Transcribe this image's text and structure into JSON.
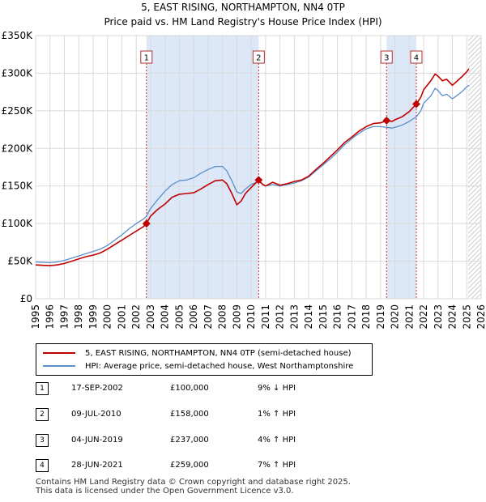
{
  "header": {
    "title_line1": "5, EAST RISING, NORTHAMPTON, NN4 0TP",
    "title_line2": "Price paid vs. HM Land Registry's House Price Index (HPI)"
  },
  "colors": {
    "property_line": "#c00000",
    "hpi_line": "#5b8fc9",
    "shade": "#dce8f8",
    "grid": "#d9d9d9",
    "marker_line": "#cc3333"
  },
  "chart_data": {
    "type": "line",
    "title": "Price paid vs. HM Land Registry's House Price Index (HPI)",
    "xlabel": "",
    "ylabel": "",
    "xlim": [
      1995,
      2026
    ],
    "ylim": [
      0,
      350000
    ],
    "x_ticks": [
      1995,
      1996,
      1997,
      1998,
      1999,
      2000,
      2001,
      2002,
      2003,
      2004,
      2005,
      2006,
      2007,
      2008,
      2009,
      2010,
      2011,
      2012,
      2013,
      2014,
      2015,
      2016,
      2017,
      2018,
      2019,
      2020,
      2021,
      2022,
      2023,
      2024,
      2025,
      2026
    ],
    "y_ticks": [
      {
        "value": 0,
        "label": "£0"
      },
      {
        "value": 50000,
        "label": "£50K"
      },
      {
        "value": 100000,
        "label": "£100K"
      },
      {
        "value": 150000,
        "label": "£150K"
      },
      {
        "value": 200000,
        "label": "£200K"
      },
      {
        "value": 250000,
        "label": "£250K"
      },
      {
        "value": 300000,
        "label": "£300K"
      },
      {
        "value": 350000,
        "label": "£350K"
      }
    ],
    "shaded_ranges": [
      [
        2002.71,
        2010.52
      ],
      [
        2019.42,
        2021.49
      ]
    ],
    "future_hatch_from": 2025.1,
    "series": [
      {
        "name": "5, EAST RISING, NORTHAMPTON, NN4 0TP (semi-detached house)",
        "color": "#c00000",
        "points": [
          [
            1995.0,
            45000
          ],
          [
            1995.5,
            44500
          ],
          [
            1996.0,
            44000
          ],
          [
            1996.5,
            45000
          ],
          [
            1997.0,
            47000
          ],
          [
            1997.5,
            50000
          ],
          [
            1998.0,
            53000
          ],
          [
            1998.5,
            56000
          ],
          [
            1999.0,
            58000
          ],
          [
            1999.5,
            61000
          ],
          [
            2000.0,
            66000
          ],
          [
            2000.5,
            72000
          ],
          [
            2001.0,
            78000
          ],
          [
            2001.5,
            84000
          ],
          [
            2002.0,
            90000
          ],
          [
            2002.5,
            96000
          ],
          [
            2002.71,
            100000
          ],
          [
            2003.0,
            110000
          ],
          [
            2003.5,
            119000
          ],
          [
            2004.0,
            126000
          ],
          [
            2004.5,
            135000
          ],
          [
            2005.0,
            139000
          ],
          [
            2005.5,
            140000
          ],
          [
            2006.0,
            141000
          ],
          [
            2006.5,
            146000
          ],
          [
            2007.0,
            152000
          ],
          [
            2007.5,
            157000
          ],
          [
            2008.0,
            158000
          ],
          [
            2008.3,
            153000
          ],
          [
            2008.7,
            138000
          ],
          [
            2009.0,
            125000
          ],
          [
            2009.3,
            130000
          ],
          [
            2009.6,
            140000
          ],
          [
            2010.0,
            148000
          ],
          [
            2010.52,
            158000
          ],
          [
            2010.8,
            152000
          ],
          [
            2011.0,
            150000
          ],
          [
            2011.5,
            155000
          ],
          [
            2012.0,
            151000
          ],
          [
            2012.5,
            153000
          ],
          [
            2013.0,
            156000
          ],
          [
            2013.5,
            158000
          ],
          [
            2014.0,
            163000
          ],
          [
            2014.5,
            172000
          ],
          [
            2015.0,
            180000
          ],
          [
            2015.5,
            189000
          ],
          [
            2016.0,
            198000
          ],
          [
            2016.5,
            208000
          ],
          [
            2017.0,
            215000
          ],
          [
            2017.5,
            223000
          ],
          [
            2018.0,
            229000
          ],
          [
            2018.5,
            233000
          ],
          [
            2019.0,
            234000
          ],
          [
            2019.42,
            237000
          ],
          [
            2019.8,
            236000
          ],
          [
            2020.0,
            238000
          ],
          [
            2020.5,
            242000
          ],
          [
            2021.0,
            249000
          ],
          [
            2021.49,
            259000
          ],
          [
            2021.8,
            268000
          ],
          [
            2022.0,
            278000
          ],
          [
            2022.5,
            290000
          ],
          [
            2022.8,
            299000
          ],
          [
            2023.0,
            296000
          ],
          [
            2023.3,
            290000
          ],
          [
            2023.6,
            292000
          ],
          [
            2024.0,
            284000
          ],
          [
            2024.3,
            289000
          ],
          [
            2024.7,
            296000
          ],
          [
            2025.0,
            302000
          ],
          [
            2025.15,
            306000
          ]
        ]
      },
      {
        "name": "HPI: Average price, semi-detached house, West Northamptonshire",
        "color": "#5b8fc9",
        "points": [
          [
            1995.0,
            49000
          ],
          [
            1995.5,
            48500
          ],
          [
            1996.0,
            48000
          ],
          [
            1996.5,
            49000
          ],
          [
            1997.0,
            51000
          ],
          [
            1997.5,
            54000
          ],
          [
            1998.0,
            57000
          ],
          [
            1998.5,
            60000
          ],
          [
            1999.0,
            63000
          ],
          [
            1999.5,
            66000
          ],
          [
            2000.0,
            71000
          ],
          [
            2000.5,
            78000
          ],
          [
            2001.0,
            85000
          ],
          [
            2001.5,
            93000
          ],
          [
            2002.0,
            100000
          ],
          [
            2002.5,
            106000
          ],
          [
            2002.71,
            110000
          ],
          [
            2003.0,
            120000
          ],
          [
            2003.5,
            132000
          ],
          [
            2004.0,
            143000
          ],
          [
            2004.5,
            152000
          ],
          [
            2005.0,
            157000
          ],
          [
            2005.5,
            158000
          ],
          [
            2006.0,
            161000
          ],
          [
            2006.5,
            167000
          ],
          [
            2007.0,
            172000
          ],
          [
            2007.5,
            176000
          ],
          [
            2008.0,
            176000
          ],
          [
            2008.3,
            170000
          ],
          [
            2008.7,
            155000
          ],
          [
            2009.0,
            142000
          ],
          [
            2009.3,
            140000
          ],
          [
            2009.6,
            146000
          ],
          [
            2010.0,
            152000
          ],
          [
            2010.52,
            156000
          ],
          [
            2011.0,
            150000
          ],
          [
            2011.5,
            152000
          ],
          [
            2012.0,
            150000
          ],
          [
            2012.5,
            152000
          ],
          [
            2013.0,
            154000
          ],
          [
            2013.5,
            157000
          ],
          [
            2014.0,
            162000
          ],
          [
            2014.5,
            170000
          ],
          [
            2015.0,
            178000
          ],
          [
            2015.5,
            186000
          ],
          [
            2016.0,
            195000
          ],
          [
            2016.5,
            205000
          ],
          [
            2017.0,
            213000
          ],
          [
            2017.5,
            220000
          ],
          [
            2018.0,
            226000
          ],
          [
            2018.5,
            229000
          ],
          [
            2019.0,
            229000
          ],
          [
            2019.42,
            228000
          ],
          [
            2019.8,
            227000
          ],
          [
            2020.0,
            228000
          ],
          [
            2020.5,
            231000
          ],
          [
            2021.0,
            236000
          ],
          [
            2021.49,
            242000
          ],
          [
            2021.8,
            250000
          ],
          [
            2022.0,
            260000
          ],
          [
            2022.5,
            270000
          ],
          [
            2022.8,
            280000
          ],
          [
            2023.0,
            277000
          ],
          [
            2023.3,
            270000
          ],
          [
            2023.6,
            272000
          ],
          [
            2024.0,
            266000
          ],
          [
            2024.3,
            270000
          ],
          [
            2024.7,
            276000
          ],
          [
            2025.0,
            282000
          ],
          [
            2025.15,
            284000
          ]
        ]
      }
    ],
    "sales": [
      {
        "num": "1",
        "year": 2002.71,
        "price": 100000
      },
      {
        "num": "2",
        "year": 2010.52,
        "price": 158000
      },
      {
        "num": "3",
        "year": 2019.42,
        "price": 237000
      },
      {
        "num": "4",
        "year": 2021.49,
        "price": 259000
      }
    ]
  },
  "legend": {
    "property_label": "5, EAST RISING, NORTHAMPTON, NN4 0TP (semi-detached house)",
    "hpi_label": "HPI: Average price, semi-detached house, West Northamptonshire"
  },
  "sales_table": [
    {
      "num": "1",
      "date": "17-SEP-2002",
      "price": "£100,000",
      "hpi": "9% ↓ HPI"
    },
    {
      "num": "2",
      "date": "09-JUL-2010",
      "price": "£158,000",
      "hpi": "1% ↑ HPI"
    },
    {
      "num": "3",
      "date": "04-JUN-2019",
      "price": "£237,000",
      "hpi": "4% ↑ HPI"
    },
    {
      "num": "4",
      "date": "28-JUN-2021",
      "price": "£259,000",
      "hpi": "7% ↑ HPI"
    }
  ],
  "footer": {
    "line1": "Contains HM Land Registry data © Crown copyright and database right 2025.",
    "line2": "This data is licensed under the Open Government Licence v3.0."
  }
}
